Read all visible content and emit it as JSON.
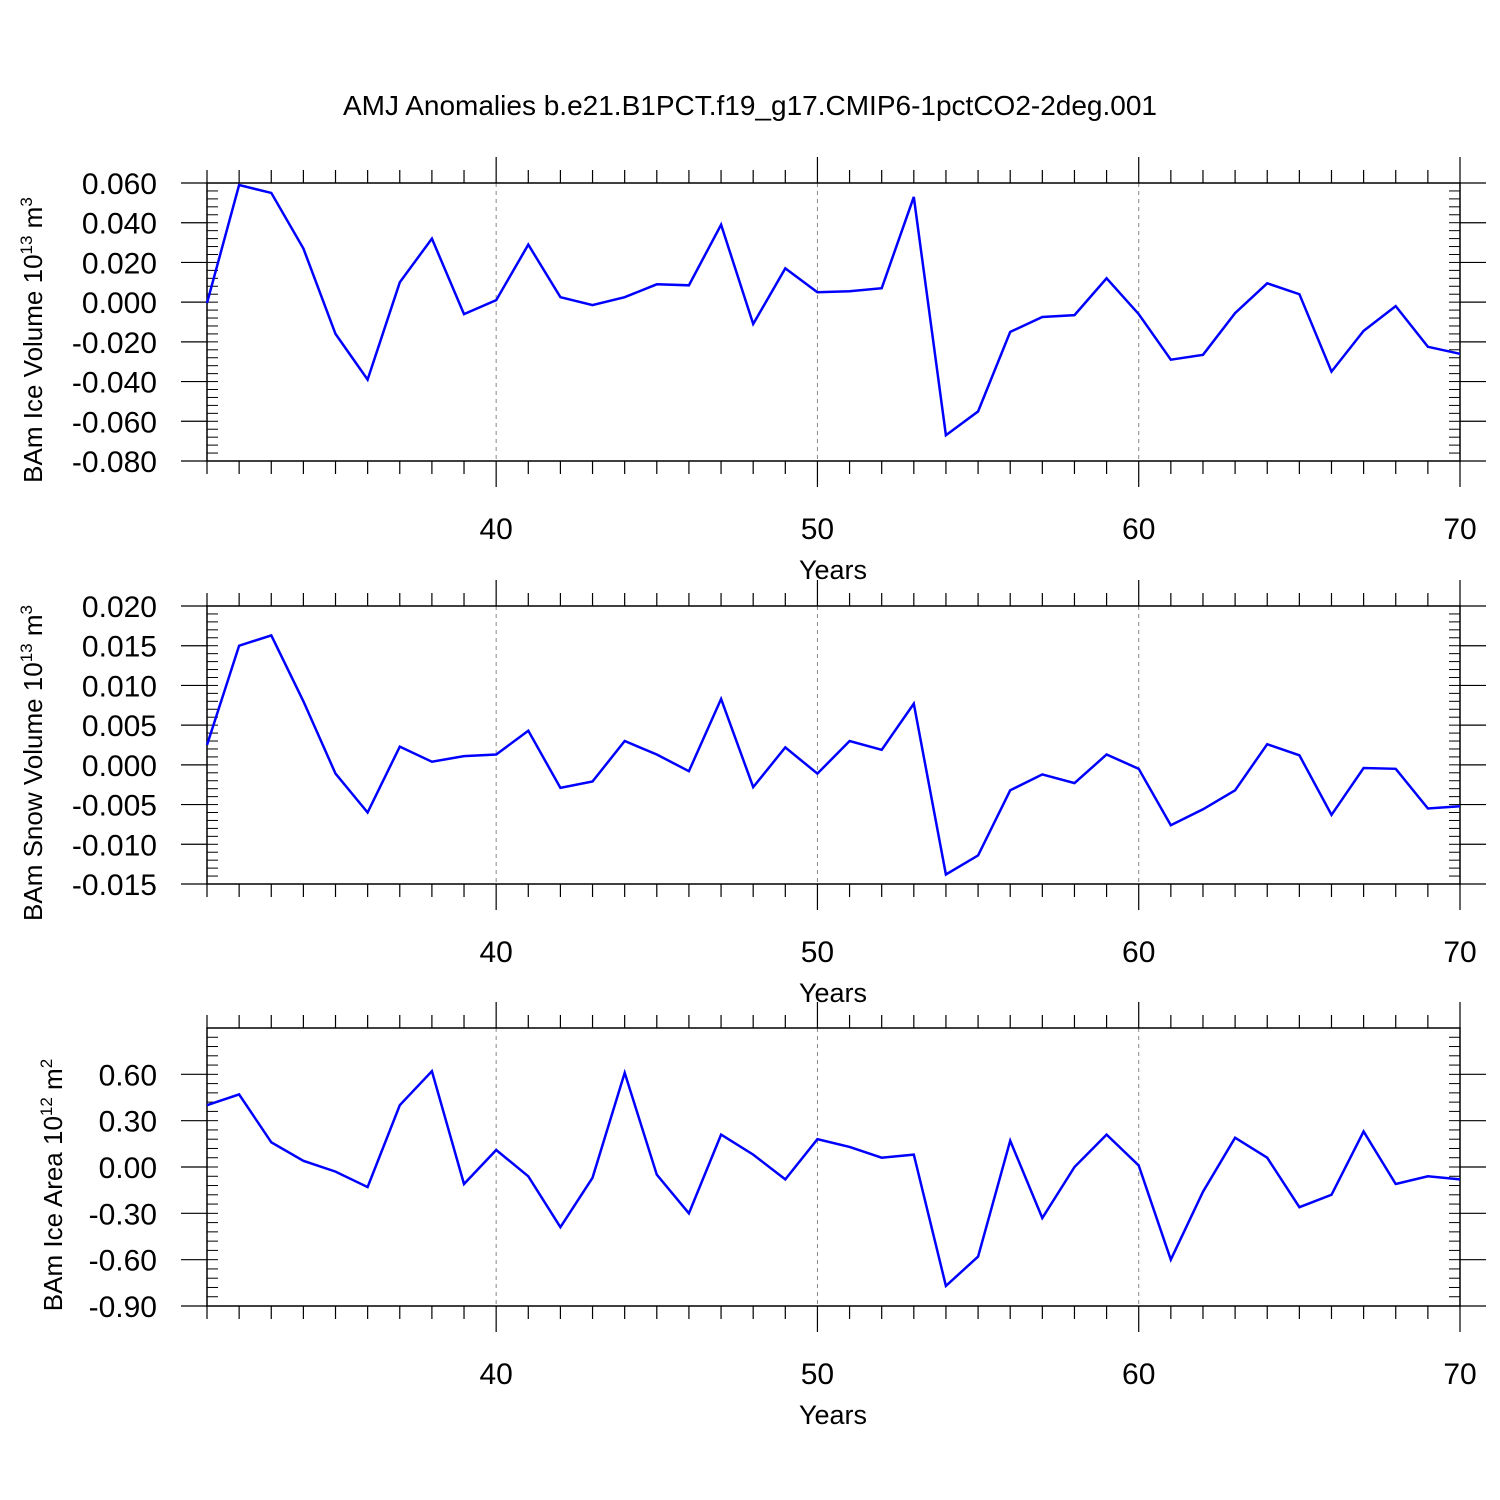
{
  "title": "AMJ Anomalies b.e21.B1PCT.f19_g17.CMIP6-1pctCO2-2deg.001",
  "line_color": "#0000ff",
  "chart_data": [
    {
      "type": "line",
      "ylabel_main": "BAm Ice Volume 10",
      "ylabel_exp": "13",
      "ylabel_unit": " m",
      "ylabel_unit_exp": "3",
      "xlabel": "Years",
      "xlim": [
        31,
        70
      ],
      "ylim": [
        -0.08,
        0.06
      ],
      "yticks": [
        0.06,
        0.04,
        0.02,
        0.0,
        -0.02,
        -0.04,
        -0.06,
        -0.08
      ],
      "yticklabels": [
        "0.060",
        "0.040",
        "0.020",
        "0.000",
        "-0.020",
        "-0.040",
        "-0.060",
        "-0.080"
      ],
      "xticks": [
        40,
        50,
        60,
        70
      ],
      "xticklabels": [
        "40",
        "50",
        "60",
        "70"
      ],
      "x": [
        31,
        32,
        33,
        34,
        35,
        36,
        37,
        38,
        39,
        40,
        41,
        42,
        43,
        44,
        45,
        46,
        47,
        48,
        49,
        50,
        51,
        52,
        53,
        54,
        55,
        56,
        57,
        58,
        59,
        60,
        61,
        62,
        63,
        64,
        65,
        66,
        67,
        68,
        69,
        70
      ],
      "values": [
        -0.0005,
        0.059,
        0.055,
        0.027,
        -0.016,
        -0.039,
        0.01,
        0.032,
        -0.006,
        0.001,
        0.029,
        0.0025,
        -0.0015,
        0.0025,
        0.009,
        0.0085,
        0.039,
        -0.011,
        0.017,
        0.005,
        0.0055,
        0.007,
        0.053,
        -0.067,
        -0.055,
        -0.015,
        -0.0075,
        -0.0065,
        0.012,
        -0.006,
        -0.029,
        -0.0265,
        -0.0055,
        0.0095,
        0.004,
        -0.035,
        -0.0145,
        -0.002,
        -0.0225,
        -0.026
      ]
    },
    {
      "type": "line",
      "ylabel_main": "BAm Snow Volume 10",
      "ylabel_exp": "13",
      "ylabel_unit": " m",
      "ylabel_unit_exp": "3",
      "xlabel": "Years",
      "xlim": [
        31,
        70
      ],
      "ylim": [
        -0.015,
        0.02
      ],
      "yticks": [
        0.02,
        0.015,
        0.01,
        0.005,
        0.0,
        -0.005,
        -0.01,
        -0.015
      ],
      "yticklabels": [
        "0.020",
        "0.015",
        "0.010",
        "0.005",
        "0.000",
        "-0.005",
        "-0.010",
        "-0.015"
      ],
      "xticks": [
        40,
        50,
        60,
        70
      ],
      "xticklabels": [
        "40",
        "50",
        "60",
        "70"
      ],
      "x": [
        31,
        32,
        33,
        34,
        35,
        36,
        37,
        38,
        39,
        40,
        41,
        42,
        43,
        44,
        45,
        46,
        47,
        48,
        49,
        50,
        51,
        52,
        53,
        54,
        55,
        56,
        57,
        58,
        59,
        60,
        61,
        62,
        63,
        64,
        65,
        66,
        67,
        68,
        69,
        70
      ],
      "values": [
        0.0025,
        0.015,
        0.0163,
        0.008,
        -0.0011,
        -0.006,
        0.0023,
        0.0004,
        0.0011,
        0.0013,
        0.0043,
        -0.0029,
        -0.0021,
        0.003,
        0.0013,
        -0.0008,
        0.0083,
        -0.0028,
        0.0022,
        -0.0011,
        0.003,
        0.0019,
        0.0077,
        -0.0138,
        -0.0114,
        -0.0032,
        -0.0012,
        -0.0023,
        0.0013,
        -0.0005,
        -0.0076,
        -0.0056,
        -0.0032,
        0.0026,
        0.0012,
        -0.0063,
        -0.0004,
        -0.0005,
        -0.0055,
        -0.0052
      ]
    },
    {
      "type": "line",
      "ylabel_main": "BAm Ice Area 10",
      "ylabel_exp": "12",
      "ylabel_unit": " m",
      "ylabel_unit_exp": "2",
      "xlabel": "Years",
      "xlim": [
        31,
        70
      ],
      "ylim": [
        -0.9,
        0.9
      ],
      "yticks": [
        0.6,
        0.3,
        0.0,
        -0.3,
        -0.6,
        -0.9
      ],
      "yticklabels": [
        "0.60",
        "0.30",
        "0.00",
        "-0.30",
        "-0.60",
        "-0.90"
      ],
      "xticks": [
        40,
        50,
        60,
        70
      ],
      "xticklabels": [
        "40",
        "50",
        "60",
        "70"
      ],
      "x": [
        31,
        32,
        33,
        34,
        35,
        36,
        37,
        38,
        39,
        40,
        41,
        42,
        43,
        44,
        45,
        46,
        47,
        48,
        49,
        50,
        51,
        52,
        53,
        54,
        55,
        56,
        57,
        58,
        59,
        60,
        61,
        62,
        63,
        64,
        65,
        66,
        67,
        68,
        69,
        70
      ],
      "values": [
        0.4,
        0.47,
        0.16,
        0.04,
        -0.03,
        -0.13,
        0.4,
        0.62,
        -0.11,
        0.11,
        -0.06,
        -0.39,
        -0.07,
        0.61,
        -0.05,
        -0.3,
        0.21,
        0.08,
        -0.08,
        0.18,
        0.13,
        0.06,
        0.08,
        -0.77,
        -0.58,
        0.17,
        -0.33,
        0.0,
        0.21,
        0.01,
        -0.6,
        -0.16,
        0.19,
        0.06,
        -0.26,
        -0.18,
        0.23,
        -0.11,
        -0.06,
        -0.08
      ]
    }
  ]
}
